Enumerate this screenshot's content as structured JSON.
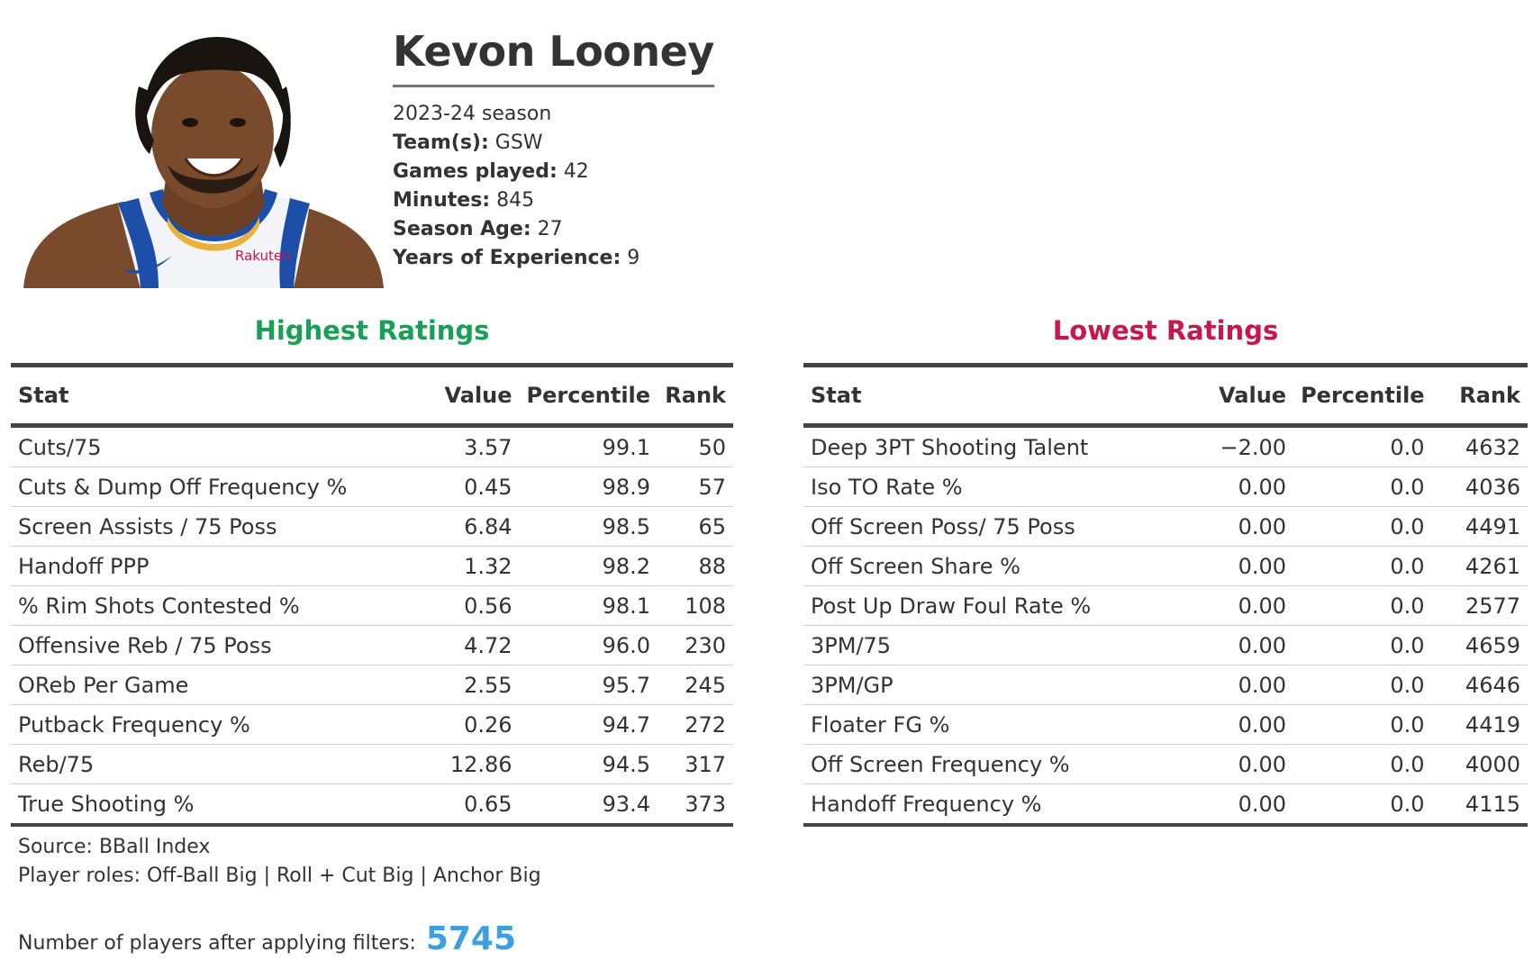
{
  "player": {
    "name": "Kevon Looney",
    "season": "2023-24 season",
    "info": [
      {
        "label": "Team(s):",
        "value": " GSW"
      },
      {
        "label": "Games played:",
        "value": " 42"
      },
      {
        "label": "Minutes:",
        "value": " 845"
      },
      {
        "label": "Season Age:",
        "value": " 27"
      },
      {
        "label": "Years of Experience:",
        "value": " 9"
      }
    ],
    "photo_text": "Rakuten"
  },
  "highest": {
    "title": "Highest Ratings",
    "headers": [
      "Stat",
      "Value",
      "Percentile",
      "Rank"
    ],
    "rows": [
      [
        "Cuts/75",
        "3.57",
        "99.1",
        "50"
      ],
      [
        "Cuts & Dump Off Frequency %",
        "0.45",
        "98.9",
        "57"
      ],
      [
        "Screen Assists / 75 Poss",
        "6.84",
        "98.5",
        "65"
      ],
      [
        "Handoff PPP",
        "1.32",
        "98.2",
        "88"
      ],
      [
        "% Rim Shots Contested %",
        "0.56",
        "98.1",
        "108"
      ],
      [
        "Offensive Reb / 75 Poss",
        "4.72",
        "96.0",
        "230"
      ],
      [
        "OReb Per Game",
        "2.55",
        "95.7",
        "245"
      ],
      [
        "Putback Frequency %",
        "0.26",
        "94.7",
        "272"
      ],
      [
        "Reb/75",
        "12.86",
        "94.5",
        "317"
      ],
      [
        "True Shooting %",
        "0.65",
        "93.4",
        "373"
      ]
    ]
  },
  "lowest": {
    "title": "Lowest Ratings",
    "headers": [
      "Stat",
      "Value",
      "Percentile",
      "Rank"
    ],
    "rows": [
      [
        "Deep 3PT Shooting Talent",
        "−2.00",
        "0.0",
        "4632"
      ],
      [
        "Iso TO Rate %",
        "0.00",
        "0.0",
        "4036"
      ],
      [
        "Off Screen Poss/ 75 Poss",
        "0.00",
        "0.0",
        "4491"
      ],
      [
        "Off Screen Share %",
        "0.00",
        "0.0",
        "4261"
      ],
      [
        "Post Up Draw Foul Rate %",
        "0.00",
        "0.0",
        "2577"
      ],
      [
        "3PM/75",
        "0.00",
        "0.0",
        "4659"
      ],
      [
        "3PM/GP",
        "0.00",
        "0.0",
        "4646"
      ],
      [
        "Floater FG %",
        "0.00",
        "0.0",
        "4419"
      ],
      [
        "Off Screen Frequency %",
        "0.00",
        "0.0",
        "4000"
      ],
      [
        "Handoff Frequency %",
        "0.00",
        "0.0",
        "4115"
      ]
    ]
  },
  "footer": {
    "source": "Source: BBall Index",
    "roles": "Player roles: Off-Ball Big | Roll + Cut Big | Anchor Big",
    "count_label": "Number of players after applying filters:",
    "count_value": "5745"
  },
  "colors": {
    "highest_title": "#1aa055",
    "lowest_title": "#c8174a",
    "count_value": "#3c9fe0",
    "rule": "#444444"
  }
}
